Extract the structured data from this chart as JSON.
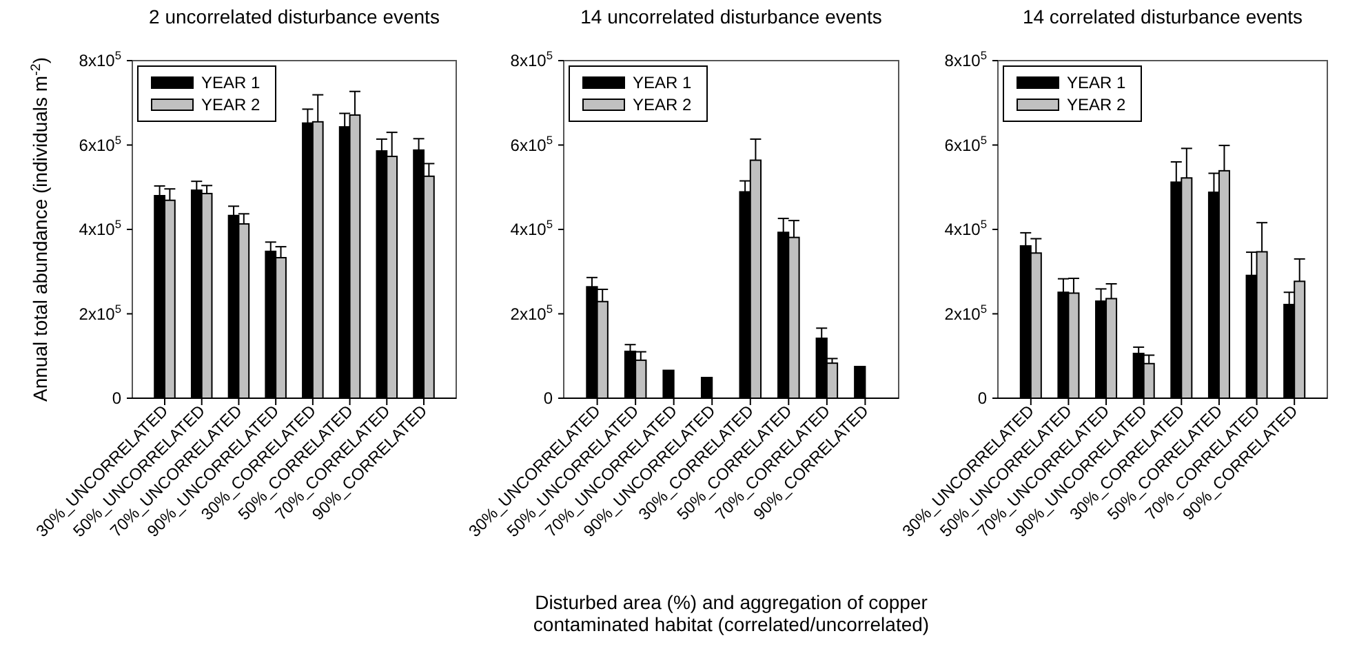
{
  "chart_data": [
    {
      "type": "bar",
      "title": "2 uncorrelated disturbance events",
      "ylabel": "Annual total abundance (individuals m$^{-2}$)",
      "categories": [
        "30%_UNCORRELATED",
        "50%_UNCORRELATED",
        "70%_UNCORRELATED",
        "90%_UNCORRELATED",
        "30%_CORRELATED",
        "50%_CORRELATED",
        "70%_CORRELATED",
        "90%_CORRELATED"
      ],
      "series": [
        {
          "name": "YEAR 1",
          "color": "#000000",
          "values": [
            480000,
            493000,
            433000,
            348000,
            652000,
            643000,
            586000,
            588000
          ],
          "errors": [
            23000,
            21000,
            22000,
            22000,
            33000,
            32000,
            28000,
            27000
          ]
        },
        {
          "name": "YEAR 2",
          "color": "#c0c0c0",
          "values": [
            469000,
            485000,
            413000,
            333000,
            655000,
            671000,
            573000,
            526000
          ],
          "errors": [
            27000,
            19000,
            24000,
            26000,
            64000,
            56000,
            57000,
            30000
          ]
        }
      ],
      "ylim": [
        0,
        800000
      ],
      "yticks": [
        {
          "value": 0,
          "label": "0"
        },
        {
          "value": 200000,
          "label": "2x10$^{5}$"
        },
        {
          "value": 400000,
          "label": "4x10$^{5}$"
        },
        {
          "value": 600000,
          "label": "6x10$^{5}$"
        },
        {
          "value": 800000,
          "label": "8x10$^{5}$"
        }
      ],
      "legend": "top left",
      "grid": false
    },
    {
      "type": "bar",
      "title": "14 uncorrelated disturbance events",
      "xlabel": "Disturbed area (%) and aggregation of copper contaminated habitat (correlated/uncorrelated)",
      "categories": [
        "30%_UNCORRELATED",
        "50%_UNCORRELATED",
        "70%_UNCORRELATED",
        "90%_UNCORRELATED",
        "30%_CORRELATED",
        "50%_CORRELATED",
        "70%_CORRELATED",
        "90%_CORRELATED"
      ],
      "series": [
        {
          "name": "YEAR 1",
          "color": "#000000",
          "values": [
            264000,
            111000,
            66000,
            49000,
            489000,
            393000,
            142000,
            75000
          ],
          "errors": [
            22000,
            16000,
            null,
            null,
            26000,
            33000,
            24000,
            null
          ]
        },
        {
          "name": "YEAR 2",
          "color": "#c0c0c0",
          "values": [
            229000,
            90000,
            null,
            null,
            564000,
            381000,
            83000,
            null
          ],
          "errors": [
            29000,
            20000,
            null,
            null,
            50000,
            40000,
            11000,
            null
          ]
        }
      ],
      "ylim": [
        0,
        800000
      ],
      "yticks": [
        {
          "value": 0,
          "label": "0"
        },
        {
          "value": 200000,
          "label": "2x10$^{5}$"
        },
        {
          "value": 400000,
          "label": "4x10$^{5}$"
        },
        {
          "value": 600000,
          "label": "6x10$^{5}$"
        },
        {
          "value": 800000,
          "label": "8x10$^{5}$"
        }
      ],
      "legend": "top left",
      "grid": false
    },
    {
      "type": "bar",
      "title": "14 correlated disturbance events",
      "categories": [
        "30%_UNCORRELATED",
        "50%_UNCORRELATED",
        "70%_UNCORRELATED",
        "90%_UNCORRELATED",
        "30%_CORRELATED",
        "50%_CORRELATED",
        "70%_CORRELATED",
        "90%_CORRELATED"
      ],
      "series": [
        {
          "name": "YEAR 1",
          "color": "#000000",
          "values": [
            361000,
            251000,
            230000,
            106000,
            512000,
            488000,
            291000,
            222000
          ],
          "errors": [
            31000,
            32000,
            29000,
            15000,
            48000,
            45000,
            55000,
            29000
          ]
        },
        {
          "name": "YEAR 2",
          "color": "#c0c0c0",
          "values": [
            344000,
            249000,
            236000,
            82000,
            522000,
            539000,
            347000,
            277000
          ],
          "errors": [
            34000,
            35000,
            35000,
            20000,
            70000,
            60000,
            69000,
            53000
          ]
        }
      ],
      "ylim": [
        0,
        800000
      ],
      "yticks": [
        {
          "value": 0,
          "label": "0"
        },
        {
          "value": 200000,
          "label": "2x10$^{5}$"
        },
        {
          "value": 400000,
          "label": "4x10$^{5}$"
        },
        {
          "value": 600000,
          "label": "6x10$^{5}$"
        },
        {
          "value": 800000,
          "label": "8x10$^{5}$"
        }
      ],
      "legend": "top left",
      "grid": false
    }
  ]
}
